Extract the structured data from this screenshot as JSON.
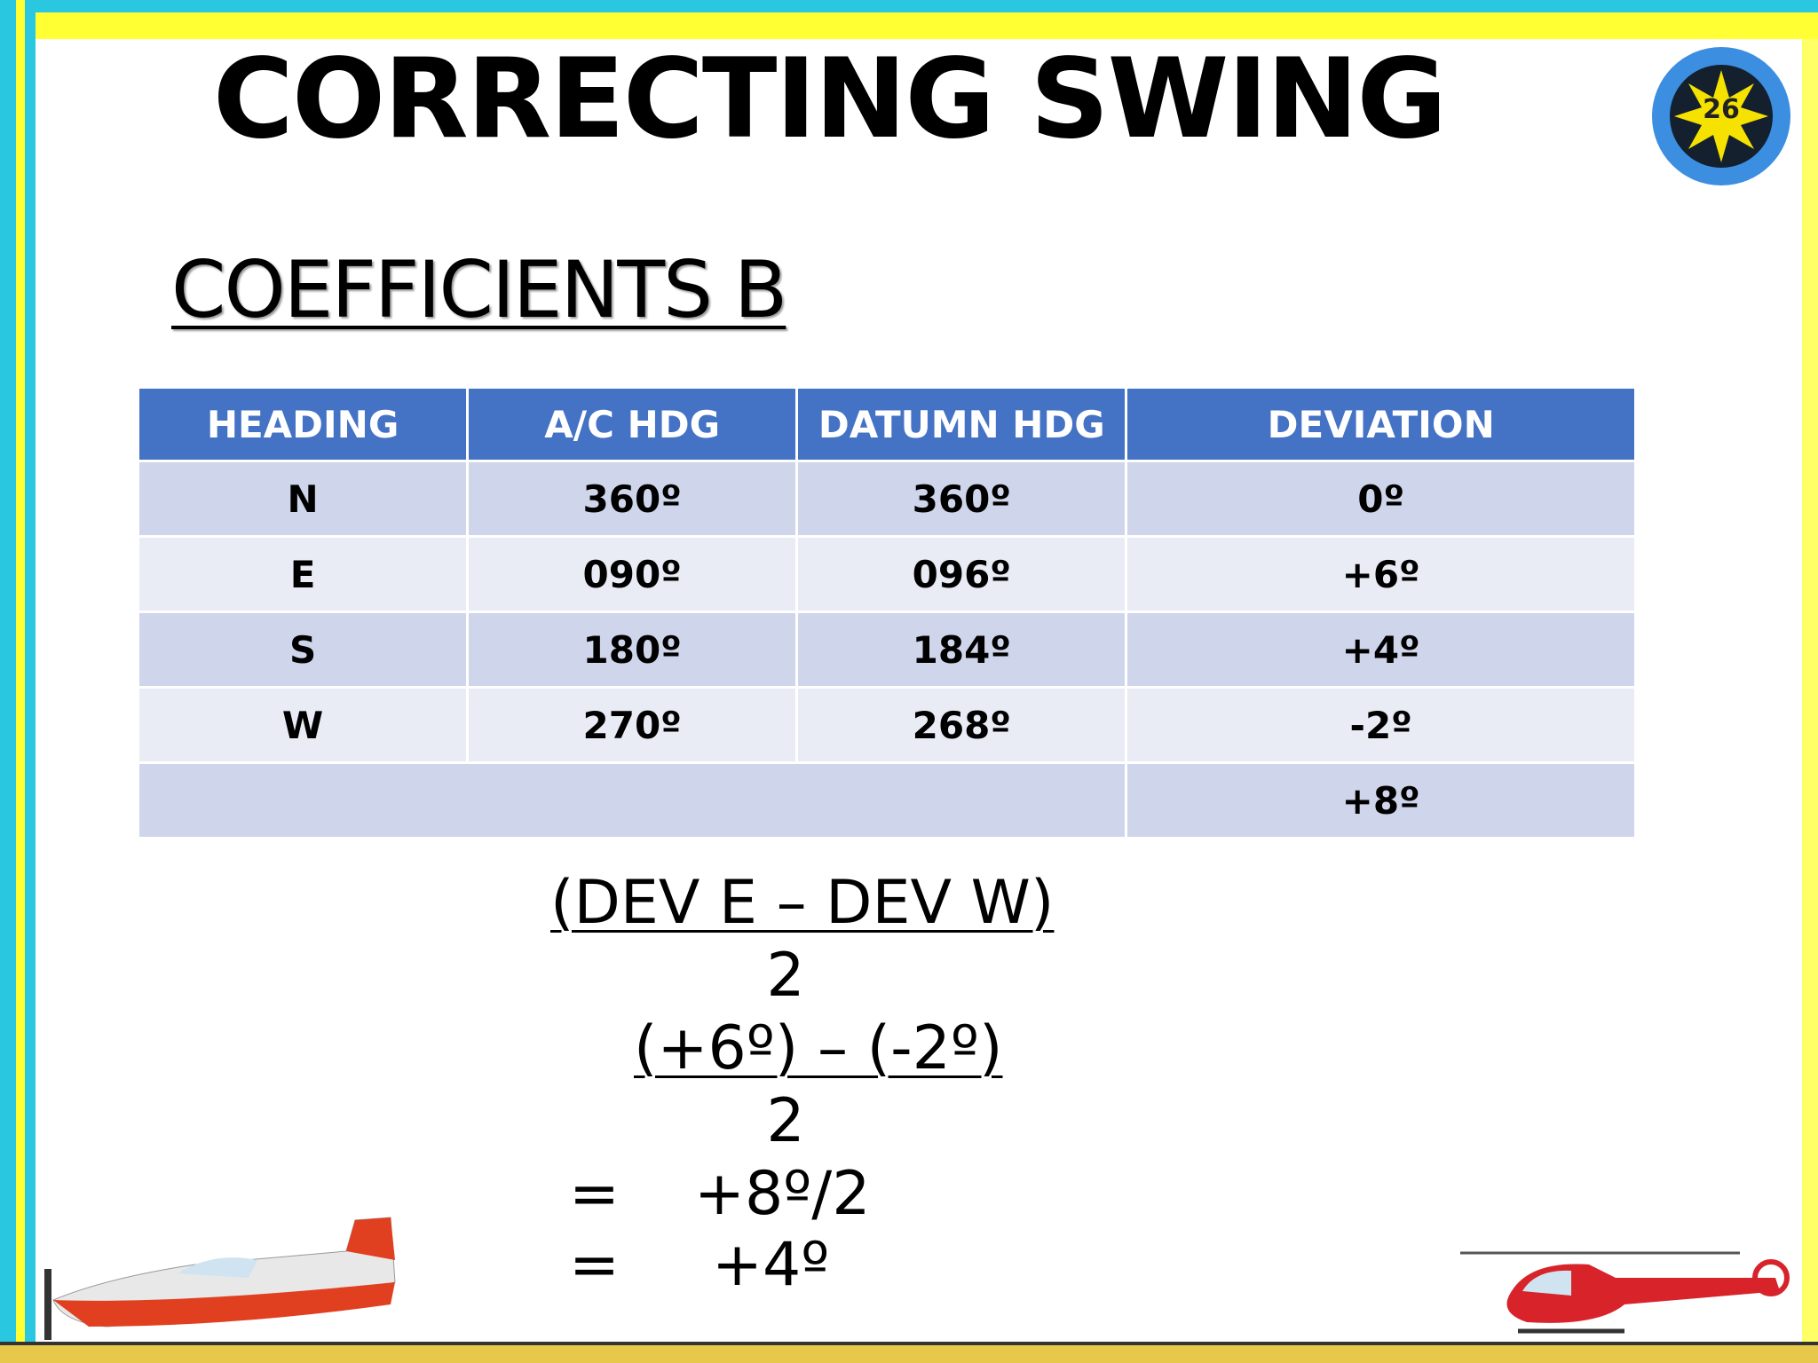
{
  "header": {
    "title": "CORRECTING SWING",
    "badge": "26"
  },
  "subtitle": "COEFFICIENTS B",
  "table": {
    "columns": [
      "HEADING",
      "A/C HDG",
      "DATUMN HDG",
      "DEVIATION"
    ],
    "rows": [
      [
        "N",
        "360º",
        "360º",
        "0º"
      ],
      [
        "E",
        "090º",
        "096º",
        "+6º"
      ],
      [
        "S",
        "180º",
        "184º",
        "+4º"
      ],
      [
        "W",
        "270º",
        "268º",
        "-2º"
      ]
    ],
    "total": "+8º"
  },
  "formula": {
    "numerator_1": "(DEV E – DEV W)",
    "denominator_1": "2",
    "numerator_2": "(+6º) – (-2º)",
    "denominator_2": "2",
    "steps": [
      {
        "sign": "=",
        "expr": "+8º/2"
      },
      {
        "sign": "=",
        "expr": "+4º"
      }
    ]
  }
}
